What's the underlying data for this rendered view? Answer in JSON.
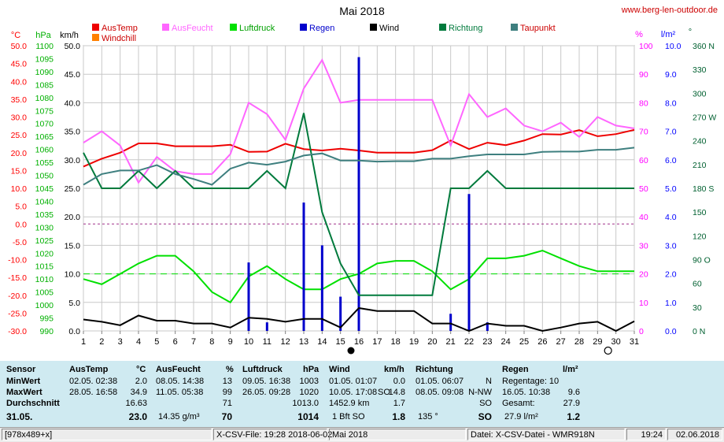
{
  "chart_data": {
    "type": "line",
    "title": "Mai 2018",
    "source": "www.berg-len-outdoor.de",
    "x": [
      1,
      2,
      3,
      4,
      5,
      6,
      7,
      8,
      9,
      10,
      11,
      12,
      13,
      14,
      15,
      16,
      17,
      18,
      19,
      20,
      21,
      22,
      23,
      24,
      25,
      26,
      27,
      28,
      29,
      30,
      31
    ],
    "axes": {
      "temp": {
        "label": "°C",
        "ticks": [
          "50.0",
          "45.0",
          "40.0",
          "35.0",
          "30.0",
          "25.0",
          "20.0",
          "15.0",
          "10.0",
          "5.0",
          "0.0",
          "-5.0",
          "-10.0",
          "-15.0",
          "-20.0",
          "-25.0",
          "-30.0"
        ],
        "color": "#ff0000"
      },
      "hpa": {
        "label": "hPa",
        "ticks": [
          "1100",
          "1095",
          "1090",
          "1085",
          "1080",
          "1075",
          "1070",
          "1065",
          "1060",
          "1055",
          "1050",
          "1045",
          "1040",
          "1035",
          "1030",
          "1025",
          "1020",
          "1015",
          "1010",
          "1005",
          "1000",
          "995",
          "990"
        ],
        "color": "#00b000"
      },
      "kmh": {
        "label": "km/h",
        "ticks": [
          "50.0",
          "45.0",
          "40.0",
          "35.0",
          "30.0",
          "25.0",
          "20.0",
          "15.0",
          "10.0",
          "5.0",
          "0.0"
        ],
        "color": "#000000"
      },
      "pct": {
        "label": "%",
        "ticks": [
          "100",
          "90",
          "80",
          "70",
          "60",
          "50",
          "40",
          "30",
          "20",
          "10",
          "0"
        ],
        "color": "#ff00ff"
      },
      "lm2": {
        "label": "l/m²",
        "ticks": [
          "10.0",
          "9.0",
          "8.0",
          "7.0",
          "6.0",
          "5.0",
          "4.0",
          "3.0",
          "2.0",
          "1.0",
          "0.0"
        ],
        "color": "#0000ff"
      },
      "deg": {
        "label": "°",
        "ticks": [
          "360 N",
          "330",
          "300",
          "270 W",
          "240",
          "210",
          "180 S",
          "150",
          "120",
          "90 O",
          "60",
          "30",
          "0 N"
        ],
        "color": "#006030"
      }
    },
    "legend": [
      "AusTemp",
      "AusFeucht",
      "Luftdruck",
      "Regen",
      "Wind",
      "Richtung",
      "Taupunkt",
      "Windchill"
    ],
    "series": [
      {
        "name": "AusTemp",
        "color": "#ee0000",
        "axis": "temp",
        "values": [
          16.1,
          18.3,
          20.0,
          22.6,
          22.6,
          21.8,
          21.8,
          21.8,
          22.2,
          20.2,
          20.3,
          22.5,
          21.0,
          20.6,
          21.1,
          20.6,
          20.0,
          20.0,
          20.0,
          20.7,
          23.4,
          21.0,
          22.8,
          22.1,
          23.4,
          25.2,
          25.1,
          26.3,
          24.6,
          25.2,
          26.4
        ]
      },
      {
        "name": "AusFeucht",
        "color": "#ff66ff",
        "axis": "pct",
        "values": [
          66,
          70,
          65,
          52,
          61,
          56,
          55,
          55,
          62,
          80,
          76,
          67,
          85,
          95,
          80,
          81,
          81,
          81,
          81,
          81,
          65,
          83,
          75,
          78,
          72,
          70,
          73,
          68,
          75,
          72,
          71
        ]
      },
      {
        "name": "Luftdruck",
        "color": "#00e000",
        "axis": "hpa",
        "values": [
          1010,
          1008,
          1012,
          1016,
          1019,
          1019,
          1013,
          1005,
          1001,
          1011,
          1015,
          1010,
          1006,
          1006,
          1010,
          1012,
          1016,
          1017,
          1017,
          1013,
          1006,
          1010,
          1018,
          1018,
          1019,
          1021,
          1018,
          1015,
          1013,
          1013,
          1013
        ]
      },
      {
        "name": "Regen",
        "color": "#0000cc",
        "axis": "lm2",
        "values": [
          0,
          0,
          0,
          0,
          0,
          0,
          0,
          0,
          0,
          2.4,
          0.3,
          0,
          4.5,
          3.0,
          1.2,
          9.6,
          0,
          0,
          0,
          0,
          0.6,
          4.8,
          0.3,
          0,
          0,
          0,
          0,
          0,
          0,
          0,
          0
        ]
      },
      {
        "name": "Wind",
        "color": "#000000",
        "axis": "kmh",
        "values": [
          2.0,
          1.6,
          1.0,
          2.7,
          1.8,
          1.8,
          1.3,
          1.3,
          0.6,
          2.3,
          2.1,
          1.6,
          2.1,
          2.1,
          0.6,
          4.0,
          3.5,
          3.5,
          3.5,
          1.3,
          1.3,
          0.0,
          1.3,
          0.9,
          0.9,
          0.0,
          0.6,
          1.3,
          1.6,
          0.0,
          1.7
        ]
      },
      {
        "name": "Richtung",
        "color": "#007a3c",
        "axis": "deg",
        "values": [
          225,
          180,
          180,
          202,
          180,
          202,
          180,
          180,
          180,
          180,
          202,
          180,
          275,
          150,
          85,
          45,
          45,
          45,
          45,
          45,
          180,
          180,
          202,
          180,
          180,
          180,
          180,
          180,
          180,
          180,
          180
        ]
      },
      {
        "name": "Taupunkt",
        "color": "#3e7f7f",
        "axis": "temp",
        "values": [
          11.0,
          14.0,
          15.0,
          15.0,
          16.5,
          14.0,
          12.6,
          11.0,
          15.5,
          17.2,
          16.6,
          17.5,
          19.2,
          19.8,
          17.8,
          17.8,
          17.5,
          17.6,
          17.6,
          18.3,
          18.3,
          19.0,
          19.5,
          19.5,
          19.5,
          20.2,
          20.3,
          20.3,
          20.8,
          20.8,
          21.4
        ]
      }
    ],
    "moon": {
      "new": "16",
      "full": "30"
    },
    "threshold_lines": [
      "0.0 °C",
      "20 %"
    ]
  },
  "table": {
    "headers": {
      "sensor": "Sensor",
      "austemp": "AusTemp",
      "austemp_unit": "°C",
      "ausfeucht": "AusFeucht",
      "ausfeucht_unit": "%",
      "luftdruck": "Luftdruck",
      "luftdruck_unit": "hPa",
      "wind": "Wind",
      "wind_unit": "km/h",
      "richtung": "Richtung",
      "regen": "Regen",
      "regen_unit": "l/m²"
    },
    "rows": {
      "min": {
        "label": "MinWert",
        "t_date": "02.05.  02:38",
        "t_val": "2.0",
        "h_date": "08.05.  14:38",
        "h_val": "13",
        "p_date": "09.05.  16:38",
        "p_val": "1003",
        "w_date": "01.05.  01:07",
        "w_val": "0.0",
        "r_date": "01.05.  06:07",
        "r_val": "N",
        "rain1": "Regentage: 10"
      },
      "max": {
        "label": "MaxWert",
        "t_date": "28.05.  16:58",
        "t_val": "34.9",
        "h_date": "11.05.  05:38",
        "h_val": "99",
        "p_date": "26.05.  09:28",
        "p_val": "1020",
        "w_date": "10.05.  17:08",
        "w_dir": "SO",
        "w_val": "14.8",
        "r_date": "08.05.  09:08",
        "r_val": "N-NW",
        "rain_date": "16.05.  10:38",
        "rain_val": "9.6"
      },
      "avg": {
        "label": "Durchschnitt",
        "t_val": "16.63",
        "h_val": "71",
        "p_val": "1013.0",
        "w_km": "1452.9 km",
        "w_val": "1.7",
        "r_val": "SO",
        "rain_label": "Gesamt:",
        "rain_val": "27.9"
      },
      "cur": {
        "label": "31.05.",
        "t_val": "23.0",
        "h_abs": "14.35 g/m³",
        "h_val": "70",
        "p_val": "1014",
        "w_bft": "1 Bft SO",
        "w_val": "1.8",
        "r_deg": "135 °",
        "r_val": "SO",
        "rain_text": "27.9 l/m²",
        "rain_val": "1.2"
      }
    }
  },
  "status": {
    "dims": "[978x489+x]",
    "file": "X-CSV-File:  19:28  2018-06-02",
    "month": "Mai 2018",
    "source": "Datei: X-CSV-Datei - WMR918N",
    "time": "19:24",
    "date": "02.06.2018"
  }
}
